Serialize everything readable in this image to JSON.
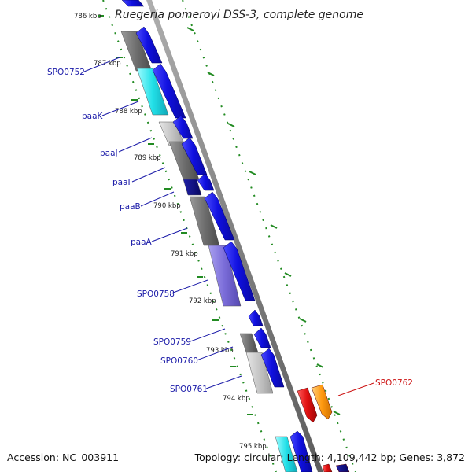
{
  "map_title": "Ruegeria pomeroyi DSS-3, complete genome",
  "accession_text": "Accession: NC_003911",
  "summary_text": "Topology: circular; Length: 4,109,442 bp; Genes: 3,872",
  "kbp_labels": [
    "786 kbp",
    "787 kbp",
    "788 kbp",
    "789 kbp",
    "790 kbp",
    "791 kbp",
    "792 kbp",
    "793 kbp",
    "794 kbp",
    "795 kbp"
  ],
  "gene_labels": [
    "SPO0752",
    "paaK",
    "paaJ",
    "paaI",
    "paaB",
    "paaA",
    "SPO0758",
    "SPO0759",
    "SPO0760",
    "SPO0761",
    "SPO0762"
  ],
  "colors": {
    "backbone": "#8c8c8c",
    "tick_green": "#228b22",
    "label_blue": "#1a1aa8",
    "label_red": "#cc1111",
    "gene_blue": "#1010e0",
    "gene_dark_blue": "#0a0a80",
    "cog_gray": "#6e6e6e",
    "cog_light_gray": "#c4c4c4",
    "cog_cyan": "#22e0e8",
    "cog_purple": "#7a6cd8",
    "gene_red": "#e01010",
    "gene_orange": "#ff9a10"
  }
}
